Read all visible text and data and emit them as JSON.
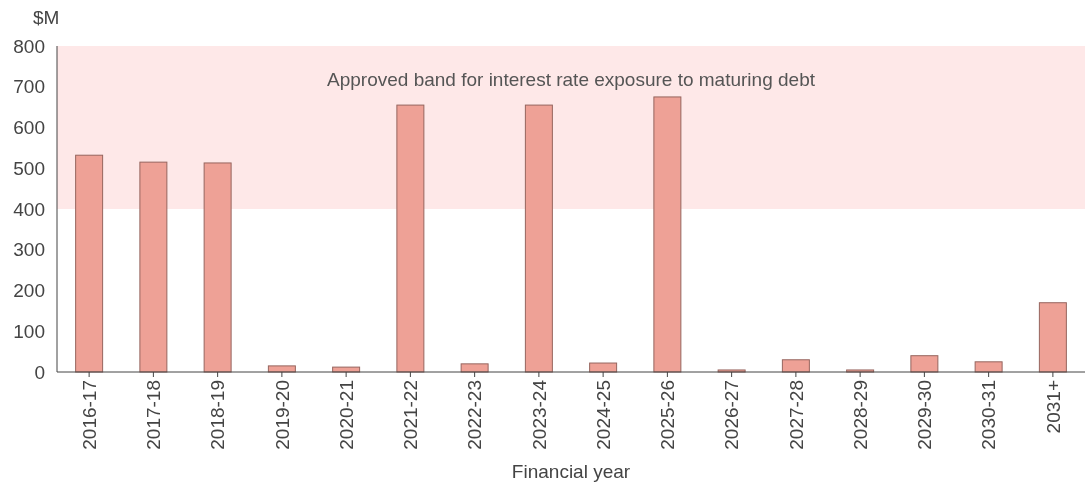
{
  "chart_data": {
    "type": "bar",
    "ylabel": "$M",
    "xlabel": "Financial year",
    "categories": [
      "2016-17",
      "2017-18",
      "2018-19",
      "2019-20",
      "2020-21",
      "2021-22",
      "2022-23",
      "2023-24",
      "2024-25",
      "2025-26",
      "2026-27",
      "2027-28",
      "2028-29",
      "2029-30",
      "2030-31",
      "2031+"
    ],
    "values": [
      532,
      515,
      513,
      15,
      12,
      655,
      20,
      655,
      22,
      675,
      5,
      30,
      5,
      40,
      25,
      170
    ],
    "color": "#eea196",
    "ylim": [
      0,
      800
    ],
    "yticks": [
      0,
      100,
      200,
      300,
      400,
      500,
      600,
      700,
      800
    ],
    "grid": false,
    "bands": [
      {
        "axis": "y",
        "from": 400,
        "to": 800,
        "label": "Approved band for interest rate exposure to maturing debt",
        "color": "#fee8e8"
      }
    ]
  }
}
